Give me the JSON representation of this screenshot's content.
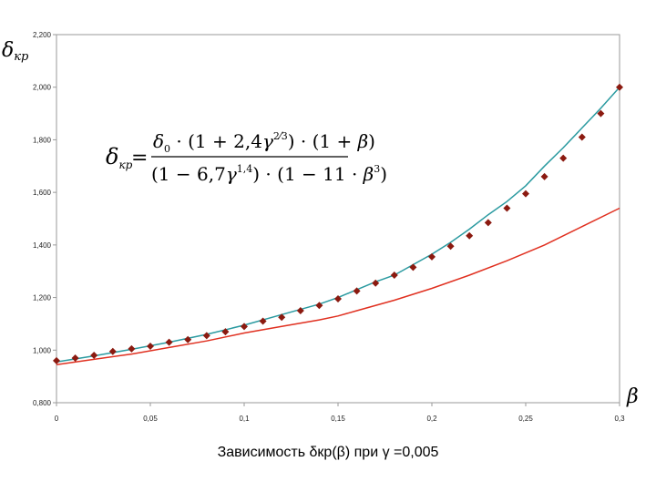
{
  "chart_data": {
    "type": "line",
    "title": "",
    "caption": "Зависимость δкр(β) при γ =0,005",
    "ylabel": "δкр",
    "xlabel": "β",
    "xlim": [
      0,
      0.3
    ],
    "ylim": [
      0.8,
      2.2
    ],
    "grid": false,
    "x_ticks": [
      "0",
      "0,05",
      "0,1",
      "0,15",
      "0,2",
      "0,25",
      "0,3"
    ],
    "y_ticks": [
      "0,800",
      "1,000",
      "1,200",
      "1,400",
      "1,600",
      "1,800",
      "2,000",
      "2,200"
    ],
    "formula": {
      "lhs": "δкр",
      "numerator": "δ0 · (1+2,4γ^(2/3)) · (1+β)",
      "denominator": "(1−6,7γ^1,4) · (1−11·β³)"
    },
    "series": [
      {
        "style": "line",
        "color": "#2a9aa0",
        "x": [
          0,
          0.02,
          0.04,
          0.06,
          0.08,
          0.1,
          0.12,
          0.14,
          0.15,
          0.16,
          0.17,
          0.18,
          0.19,
          0.2,
          0.21,
          0.22,
          0.23,
          0.24,
          0.25,
          0.26,
          0.27,
          0.28,
          0.29,
          0.3
        ],
        "y": [
          0.955,
          0.978,
          1.003,
          1.03,
          1.06,
          1.095,
          1.135,
          1.175,
          1.2,
          1.23,
          1.26,
          1.285,
          1.325,
          1.365,
          1.41,
          1.46,
          1.515,
          1.565,
          1.625,
          1.7,
          1.77,
          1.845,
          1.92,
          2.0
        ]
      },
      {
        "style": "line",
        "color": "#e03020",
        "x": [
          0,
          0.02,
          0.04,
          0.06,
          0.08,
          0.1,
          0.12,
          0.14,
          0.15,
          0.16,
          0.18,
          0.2,
          0.22,
          0.24,
          0.26,
          0.28,
          0.3
        ],
        "y": [
          0.945,
          0.965,
          0.985,
          1.01,
          1.035,
          1.065,
          1.09,
          1.115,
          1.13,
          1.15,
          1.19,
          1.235,
          1.285,
          1.34,
          1.4,
          1.47,
          1.54
        ]
      },
      {
        "style": "markers",
        "color": "#8b1a10",
        "x": [
          0,
          0.01,
          0.02,
          0.03,
          0.04,
          0.05,
          0.06,
          0.07,
          0.08,
          0.09,
          0.1,
          0.11,
          0.12,
          0.13,
          0.14,
          0.15,
          0.16,
          0.17,
          0.18,
          0.19,
          0.2,
          0.21,
          0.22,
          0.23,
          0.24,
          0.25,
          0.26,
          0.27,
          0.28,
          0.29,
          0.3
        ],
        "y": [
          0.96,
          0.97,
          0.98,
          0.995,
          1.005,
          1.015,
          1.03,
          1.04,
          1.055,
          1.07,
          1.09,
          1.11,
          1.125,
          1.15,
          1.17,
          1.195,
          1.225,
          1.255,
          1.285,
          1.315,
          1.355,
          1.395,
          1.435,
          1.485,
          1.54,
          1.595,
          1.66,
          1.73,
          1.81,
          1.9,
          2.0
        ]
      }
    ]
  }
}
